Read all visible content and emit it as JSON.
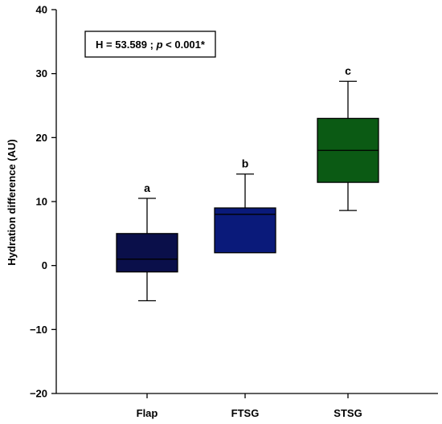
{
  "chart_data": {
    "type": "box",
    "ylabel": "Hydration difference (AU)",
    "xlabel": "",
    "ylim": [
      -20,
      40
    ],
    "yticks": [
      -20,
      -10,
      0,
      10,
      20,
      30,
      40
    ],
    "ytick_labels": [
      "−20",
      "−10",
      "0",
      "10",
      "20",
      "30",
      "40"
    ],
    "categories": [
      "Flap",
      "FTSG",
      "STSG"
    ],
    "boxes": [
      {
        "category": "Flap",
        "whisker_low": -5.5,
        "q1": -1,
        "median": 1,
        "q3": 5,
        "whisker_high": 10.5,
        "letter": "a",
        "color": "#0a0f4a"
      },
      {
        "category": "FTSG",
        "whisker_low": 2,
        "q1": 2,
        "median": 8,
        "q3": 9,
        "whisker_high": 14.3,
        "letter": "b",
        "color": "#0a1a7a"
      },
      {
        "category": "STSG",
        "whisker_low": 8.6,
        "q1": 13,
        "median": 18,
        "q3": 23,
        "whisker_high": 28.8,
        "letter": "c",
        "color": "#0b5a14"
      }
    ],
    "annotation": {
      "prefix": "H = 53.589 ; ",
      "p_symbol": "p",
      "suffix": " < 0.001*"
    },
    "grid": false
  }
}
